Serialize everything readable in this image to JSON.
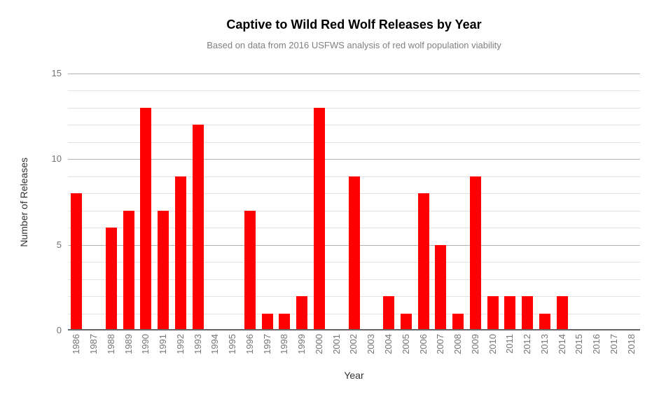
{
  "chart_data": {
    "type": "bar",
    "title": "Captive to Wild Red Wolf Releases by Year",
    "subtitle": "Based on data from 2016 USFWS analysis of red wolf population viability",
    "xlabel": "Year",
    "ylabel": "Number of Releases",
    "categories": [
      "1986",
      "1987",
      "1988",
      "1989",
      "1990",
      "1991",
      "1992",
      "1993",
      "1994",
      "1995",
      "1996",
      "1997",
      "1998",
      "1999",
      "2000",
      "2001",
      "2002",
      "2003",
      "2004",
      "2005",
      "2006",
      "2007",
      "2008",
      "2009",
      "2010",
      "2011",
      "2012",
      "2013",
      "2014",
      "2015",
      "2016",
      "2017",
      "2018"
    ],
    "values": [
      8,
      0,
      6,
      7,
      13,
      7,
      9,
      12,
      0,
      0,
      7,
      1,
      1,
      2,
      13,
      0,
      9,
      0,
      2,
      1,
      8,
      5,
      1,
      9,
      2,
      2,
      2,
      1,
      2,
      0,
      0,
      0,
      0
    ],
    "ylim": [
      0,
      15
    ],
    "yticks": [
      0,
      5,
      10,
      15
    ],
    "minor_gridline_step": 1,
    "grid": true,
    "legend": "none",
    "x_tick_rotation": -90,
    "colors": {
      "bar": "#ff0000",
      "title": "#000000",
      "subtitle": "#808080",
      "tick_label": "#757575",
      "axis_title": "#333333",
      "major_gridline": "#b3b3b3",
      "minor_gridline": "#e3e3e3",
      "baseline": "#666666",
      "background": "#ffffff"
    }
  }
}
